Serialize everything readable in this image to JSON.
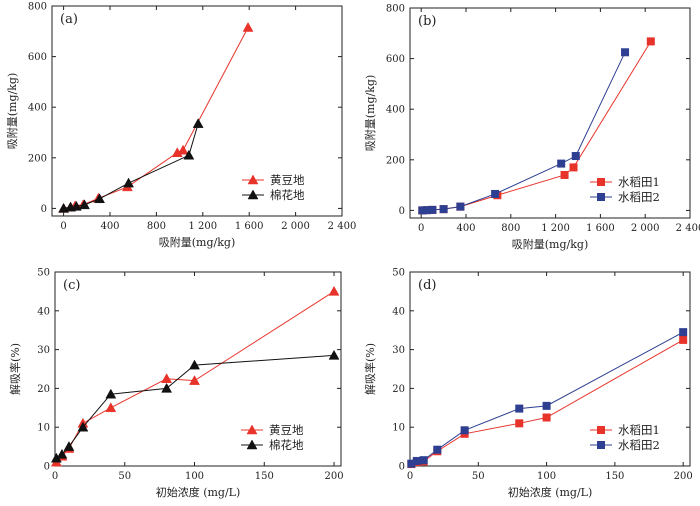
{
  "chart_data": [
    {
      "type": "line",
      "panel_label": "(a)",
      "xlabel": "吸附量(mg/kg)",
      "ylabel": "吸附量(mg/kg)",
      "xlim": [
        -100,
        2400
      ],
      "ylim": [
        -30,
        800
      ],
      "xticks": [
        0,
        400,
        800,
        1200,
        1600,
        2000,
        2400
      ],
      "xtick_labels": [
        "0",
        "400",
        "800",
        "1 200",
        "1 600",
        "2 000",
        "2 400"
      ],
      "yticks": [
        0,
        200,
        400,
        600,
        800
      ],
      "ytick_labels": [
        "0",
        "200",
        "400",
        "600",
        "800"
      ],
      "legend_position": "bottom-right",
      "series": [
        {
          "name": "黄豆地",
          "color": "#e8332a",
          "marker": "triangle",
          "x": [
            0,
            60,
            100,
            170,
            300,
            550,
            980,
            1030,
            1590
          ],
          "y": [
            0,
            5,
            10,
            15,
            40,
            85,
            220,
            230,
            715
          ]
        },
        {
          "name": "棉花地",
          "color": "#111111",
          "marker": "triangle",
          "x": [
            0,
            60,
            110,
            180,
            310,
            560,
            1080,
            1160
          ],
          "y": [
            0,
            5,
            8,
            14,
            38,
            100,
            210,
            335
          ]
        }
      ]
    },
    {
      "type": "line",
      "panel_label": "(b)",
      "xlabel": "吸附量(mg/kg)",
      "ylabel": "吸附量(mg/kg)",
      "xlim": [
        -100,
        2400
      ],
      "ylim": [
        -30,
        800
      ],
      "xticks": [
        0,
        400,
        800,
        1200,
        1600,
        2000,
        2400
      ],
      "xtick_labels": [
        "0",
        "400",
        "800",
        "1 200",
        "1 600",
        "2 000",
        "2 400"
      ],
      "yticks": [
        0,
        200,
        400,
        600,
        800
      ],
      "ytick_labels": [
        "0",
        "200",
        "400",
        "600",
        "800"
      ],
      "legend_position": "bottom-right",
      "series": [
        {
          "name": "水稻田1",
          "color": "#e8332a",
          "marker": "square",
          "x": [
            10,
            50,
            100,
            200,
            350,
            680,
            1280,
            1360,
            2050
          ],
          "y": [
            0,
            1,
            2,
            5,
            15,
            60,
            140,
            170,
            668
          ]
        },
        {
          "name": "水稻田2",
          "color": "#2e3f91",
          "marker": "square",
          "x": [
            10,
            50,
            100,
            200,
            350,
            660,
            1250,
            1380,
            1820
          ],
          "y": [
            0,
            1,
            2,
            5,
            15,
            65,
            185,
            215,
            625
          ]
        }
      ]
    },
    {
      "type": "line",
      "panel_label": "(c)",
      "xlabel": "初始浓度 (mg/L)",
      "ylabel": "解吸率(%)",
      "xlim": [
        0,
        205
      ],
      "ylim": [
        0,
        50
      ],
      "xticks": [
        0,
        50,
        100,
        150,
        200
      ],
      "xtick_labels": [
        "0",
        "50",
        "100",
        "150",
        "200"
      ],
      "yticks": [
        0,
        10,
        20,
        30,
        40,
        50
      ],
      "ytick_labels": [
        "0",
        "10",
        "20",
        "30",
        "40",
        "50"
      ],
      "legend_position": "bottom-right",
      "series": [
        {
          "name": "黄豆地",
          "color": "#e8332a",
          "marker": "triangle",
          "x": [
            1,
            5,
            10,
            20,
            40,
            80,
            100,
            200
          ],
          "y": [
            1,
            2.5,
            4.5,
            11,
            15,
            22.5,
            22,
            45
          ]
        },
        {
          "name": "棉花地",
          "color": "#111111",
          "marker": "triangle",
          "x": [
            1,
            5,
            10,
            20,
            40,
            80,
            100,
            200
          ],
          "y": [
            2,
            3,
            5,
            10,
            18.5,
            20,
            26,
            28.5
          ]
        }
      ]
    },
    {
      "type": "line",
      "panel_label": "(d)",
      "xlabel": "初始浓度 (mg/L)",
      "ylabel": "解吸率(%)",
      "xlim": [
        0,
        205
      ],
      "ylim": [
        0,
        50
      ],
      "xticks": [
        0,
        50,
        100,
        150,
        200
      ],
      "xtick_labels": [
        "0",
        "50",
        "100",
        "150",
        "200"
      ],
      "yticks": [
        0,
        10,
        20,
        30,
        40,
        50
      ],
      "ytick_labels": [
        "0",
        "10",
        "20",
        "30",
        "40",
        "50"
      ],
      "legend_position": "bottom-right",
      "series": [
        {
          "name": "水稻田1",
          "color": "#e8332a",
          "marker": "square",
          "x": [
            1,
            5,
            10,
            20,
            40,
            80,
            100,
            200
          ],
          "y": [
            0.5,
            1,
            1.2,
            3.8,
            8.3,
            11,
            12.5,
            32.5
          ]
        },
        {
          "name": "水稻田2",
          "color": "#2e3f91",
          "marker": "square",
          "x": [
            1,
            5,
            10,
            20,
            40,
            80,
            100,
            200
          ],
          "y": [
            0.6,
            1.3,
            1.5,
            4.2,
            9.2,
            14.8,
            15.5,
            34.5
          ]
        }
      ]
    }
  ]
}
